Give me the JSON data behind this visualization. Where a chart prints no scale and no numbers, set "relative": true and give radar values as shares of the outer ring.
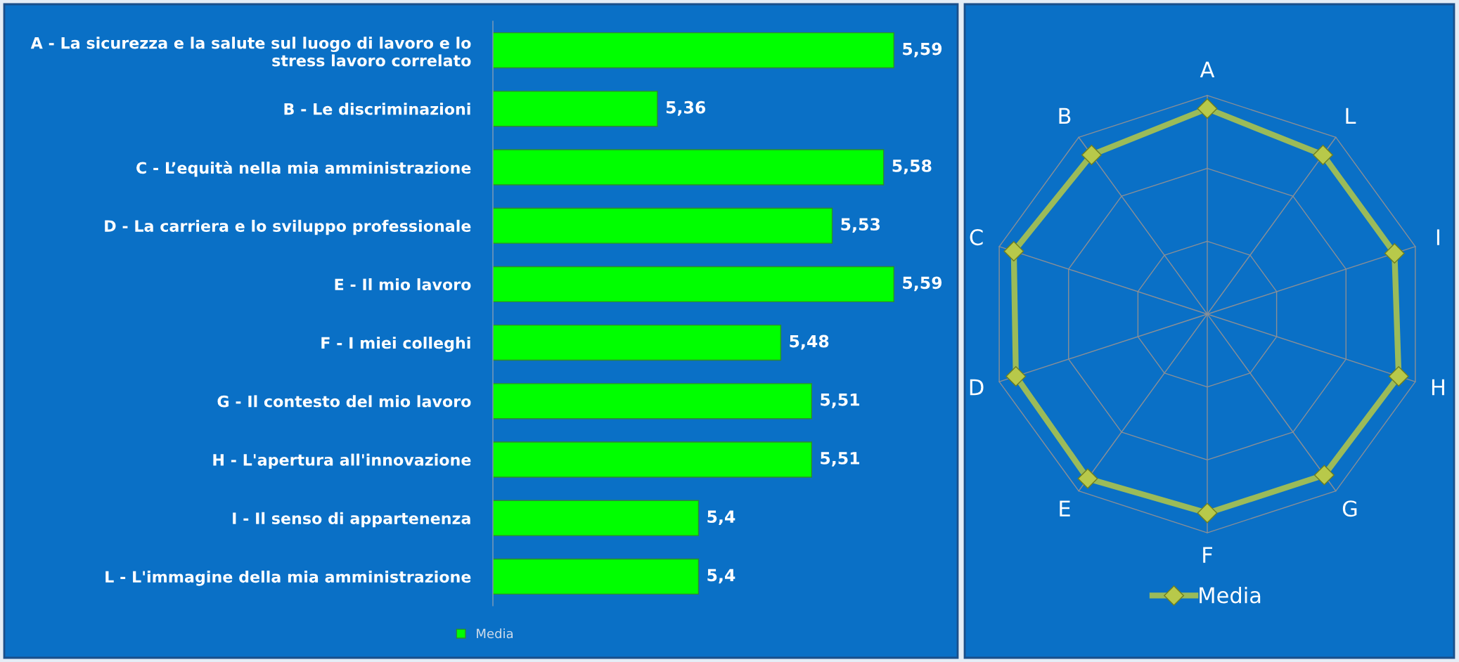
{
  "chart_data": [
    {
      "type": "bar",
      "orientation": "horizontal",
      "categories": [
        "A - La sicurezza e la salute sul luogo di lavoro e lo\nstress lavoro correlato",
        "B - Le discriminazioni",
        "C - L’equità nella mia amministrazione",
        "D - La carriera e lo sviluppo professionale",
        "E - Il mio lavoro",
        "F - I miei colleghi",
        "G - Il contesto del mio lavoro",
        "H - L'apertura all'innovazione",
        "I - Il senso di appartenenza",
        "L - L'immagine della mia amministrazione"
      ],
      "series": [
        {
          "name": "Media",
          "color": "#00ff00",
          "values": [
            5.59,
            5.36,
            5.58,
            5.53,
            5.59,
            5.48,
            5.51,
            5.51,
            5.4,
            5.4
          ],
          "value_labels": [
            "5,59",
            "5,36",
            "5,58",
            "5,53",
            "5,59",
            "5,48",
            "5,51",
            "5,51",
            "5,4",
            "5,4"
          ]
        }
      ],
      "xlim": [
        5.2,
        5.65
      ],
      "tick_labels": "y",
      "legend": "bottom",
      "grid": false
    },
    {
      "type": "radar",
      "relative": true,
      "categories": [
        "A",
        "L",
        "I",
        "H",
        "G",
        "F",
        "E",
        "D",
        "C",
        "B"
      ],
      "series": [
        {
          "name": "Media",
          "color": "#9bbb59",
          "values": [
            0.94,
            0.9,
            0.9,
            0.92,
            0.91,
            0.91,
            0.93,
            0.92,
            0.93,
            0.9
          ]
        }
      ],
      "marker": "diamond",
      "grid": true,
      "legend": "bottom"
    }
  ]
}
